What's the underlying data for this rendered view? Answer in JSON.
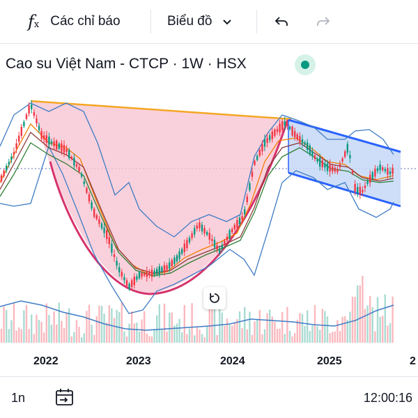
{
  "toolbar": {
    "indicators_label": "Các chỉ báo",
    "chart_type_label": "Biểu đồ",
    "icons": [
      "fx-icon",
      "chevron-down-icon",
      "undo-icon",
      "redo-icon"
    ]
  },
  "symbol": {
    "title": "Cao su Việt Nam - CTCP · 1W · HSX",
    "status_color": "#089981"
  },
  "chart_data": {
    "type": "candlestick",
    "x_ticks": [
      "2022",
      "2023",
      "2024",
      "2025",
      "2"
    ],
    "overlays": [
      "cup-and-handle pattern",
      "descending channel",
      "bollinger bands",
      "moving averages",
      "volume"
    ],
    "colors": {
      "up": "#089981",
      "down": "#f23645",
      "cup_fill": "#f7c5d3",
      "cup_curve": "#d6336c",
      "rim_line": "#f5a623",
      "channel_fill": "#c6d8f7",
      "channel_line": "#2962ff",
      "bands": "#3e7bc4"
    }
  },
  "bottom": {
    "interval": "1n",
    "clock": "12:00:16",
    "icons": [
      "date-range-icon",
      "reset-chart-icon"
    ]
  }
}
